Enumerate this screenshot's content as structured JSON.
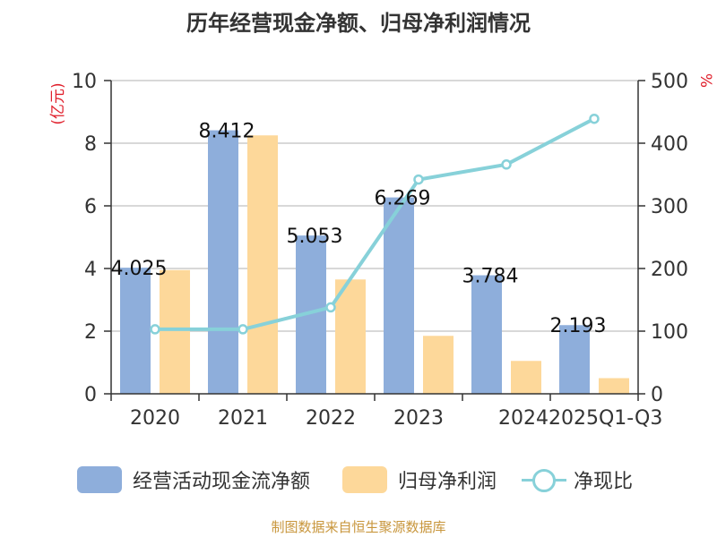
{
  "header": {
    "title": "历年经营现金净额、归母净利润情况",
    "source": "制图数据来自恒生聚源数据库"
  },
  "colors": {
    "cash_flow": "#8eaedb",
    "net_profit": "#fdd89a",
    "ratio": "#87d1d9",
    "left_unit": "#e0202c",
    "axis_text": "#333333",
    "grid": "#cccccc",
    "source_text": "#c8963c"
  },
  "chart_data": {
    "type": "bar",
    "categories": [
      "2020",
      "2021",
      "2022",
      "2023",
      "2024",
      "2025Q1-Q3"
    ],
    "series": [
      {
        "name": "经营活动现金流净额",
        "type": "bar",
        "axis": "left",
        "values": [
          4.025,
          8.412,
          5.053,
          6.269,
          3.784,
          2.193
        ],
        "data_labels": [
          "4.025",
          "8.412",
          "5.053",
          "6.269",
          "3.784",
          "2.193"
        ]
      },
      {
        "name": "归母净利润",
        "type": "bar",
        "axis": "left",
        "values": [
          3.95,
          8.25,
          3.65,
          1.85,
          1.05,
          0.5
        ]
      },
      {
        "name": "净现比",
        "type": "line",
        "axis": "right",
        "values": [
          103,
          103,
          138,
          342,
          366,
          439
        ]
      }
    ],
    "y_left": {
      "unit": "(亿元)",
      "range": [
        0,
        10
      ],
      "ticks": [
        "0",
        "2",
        "4",
        "6",
        "8",
        "10"
      ]
    },
    "y_right": {
      "unit": "%",
      "range": [
        0,
        500
      ],
      "ticks": [
        "0",
        "100",
        "200",
        "300",
        "400",
        "500"
      ]
    },
    "grid": true,
    "legend_position": "bottom"
  }
}
